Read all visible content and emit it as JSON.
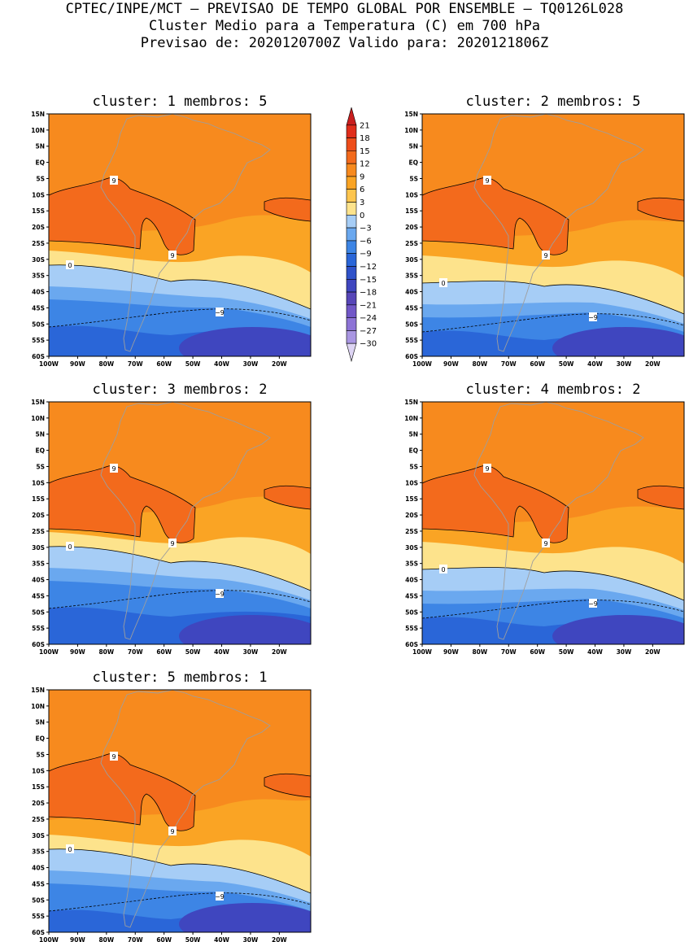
{
  "header": {
    "line1": "CPTEC/INPE/MCT – PREVISAO DE TEMPO GLOBAL POR ENSEMBLE – TQ0126L028",
    "line2": "Cluster Medio para a Temperatura (C) em 700 hPa",
    "line3": "Previsao de: 2020120700Z   Valido para: 2020121806Z"
  },
  "map": {
    "lat_labels": [
      "15N",
      "10N",
      "5N",
      "EQ",
      "5S",
      "10S",
      "15S",
      "20S",
      "25S",
      "30S",
      "35S",
      "40S",
      "45S",
      "50S",
      "55S",
      "60S"
    ],
    "lon_labels": [
      "100W",
      "90W",
      "80W",
      "70W",
      "60W",
      "50W",
      "40W",
      "30W",
      "20W"
    ]
  },
  "colorbar": {
    "levels": [
      "21",
      "18",
      "15",
      "12",
      "9",
      "6",
      "3",
      "0",
      "−3",
      "−6",
      "−9",
      "−12",
      "−15",
      "−18",
      "−21",
      "−24",
      "−27",
      "−30"
    ],
    "colors": [
      "#c81e1e",
      "#e02d1b",
      "#ee4d1a",
      "#f36a1c",
      "#f78a1e",
      "#faa424",
      "#fdc54e",
      "#fde38c",
      "#a6cdf6",
      "#6aa8ef",
      "#3d85e5",
      "#2a66d8",
      "#2f52c9",
      "#3f46bf",
      "#5746b8",
      "#7157c7",
      "#8d73d6",
      "#a996e2",
      "#ddd4f3"
    ],
    "boundary_colors": {
      "warm_9_12": "#f36a1c",
      "band_6_9": "#f78a1e",
      "band_3_6": "#faa424",
      "band_0_3": "#fde38c",
      "band_m3_0": "#a6cdf6",
      "band_m6_m3": "#6aa8ef",
      "band_m9_m6": "#3d85e5",
      "band_m12_m9": "#2a66d8",
      "band_m15_m12": "#3f46bf",
      "land_border": "#9e9e9e"
    }
  },
  "panels": [
    {
      "title": "cluster: 1   membros: 5",
      "labels": {
        "nine": "9",
        "zero": "0",
        "minus_nine": "−9"
      }
    },
    {
      "title": "cluster: 2   membros: 5",
      "labels": {
        "nine": "9",
        "zero": "0",
        "minus_nine": "−9"
      }
    },
    {
      "title": "cluster: 3   membros: 2",
      "labels": {
        "nine": "9",
        "zero": "0",
        "minus_nine": "−9"
      }
    },
    {
      "title": "cluster: 4   membros: 2",
      "labels": {
        "nine": "9",
        "zero": "0",
        "minus_nine": "−9"
      }
    },
    {
      "title": "cluster: 5   membros: 1",
      "labels": {
        "nine": "9",
        "zero": "0",
        "minus_nine": "−9"
      }
    }
  ]
}
